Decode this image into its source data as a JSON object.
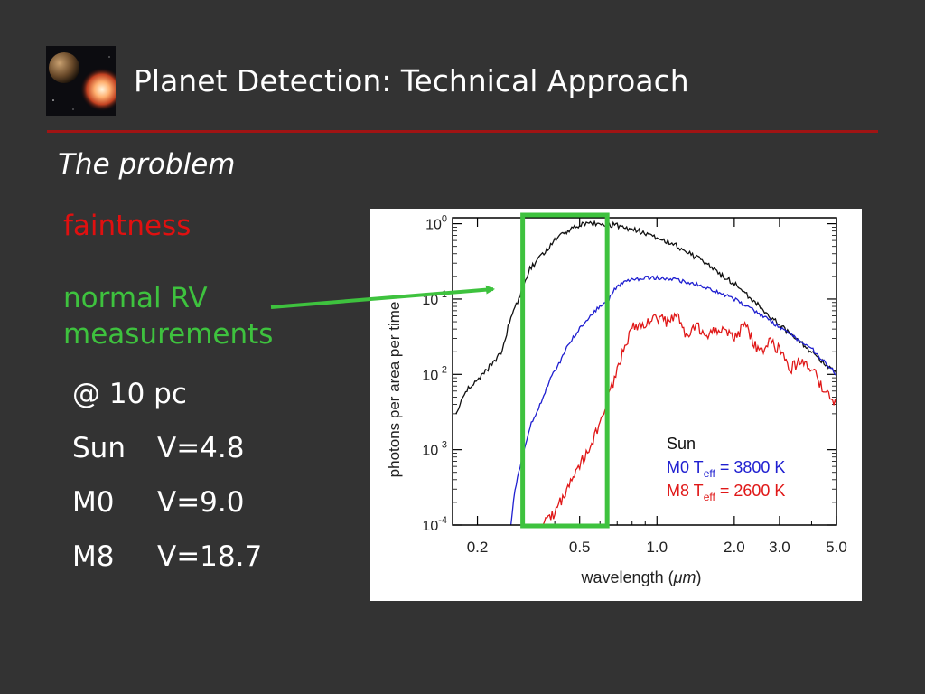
{
  "slide": {
    "title": "Planet Detection: Technical Approach",
    "subtitle": "The problem",
    "faintness": "faintness",
    "rv_line1": "normal RV",
    "rv_line2": "measurements",
    "distance": "@ 10 pc",
    "stars": [
      {
        "name": "Sun",
        "vmag": "V=4.8"
      },
      {
        "name": "M0",
        "vmag": "V=9.0"
      },
      {
        "name": "M8",
        "vmag": "V=18.7"
      }
    ],
    "colors": {
      "rule": "#a01414",
      "faintness": "#e01010",
      "rv": "#3ec23e",
      "highlight": "#3ec23e"
    }
  },
  "chart_data": {
    "type": "line",
    "xlabel_prefix": "wavelength (",
    "xlabel_unit": "μm",
    "xlabel_suffix": ")",
    "ylabel": "photons per area per time",
    "x_scale": "log",
    "y_scale": "log",
    "xlim": [
      0.16,
      5.0
    ],
    "ylim": [
      0.0001,
      1.2
    ],
    "x_ticks": [
      {
        "value": 0.2,
        "label": "0.2"
      },
      {
        "value": 0.5,
        "label": "0.5"
      },
      {
        "value": 1.0,
        "label": "1.0"
      },
      {
        "value": 2.0,
        "label": "2.0"
      },
      {
        "value": 3.0,
        "label": "3.0"
      },
      {
        "value": 5.0,
        "label": "5.0"
      }
    ],
    "y_ticks": [
      {
        "value": 1,
        "base": "10",
        "exp": "0"
      },
      {
        "value": 0.1,
        "base": "10",
        "exp": "-1"
      },
      {
        "value": 0.01,
        "base": "10",
        "exp": "-2"
      },
      {
        "value": 0.001,
        "base": "10",
        "exp": "-3"
      },
      {
        "value": 0.0001,
        "base": "10",
        "exp": "-4"
      }
    ],
    "legend": {
      "placement": "bottom-right",
      "entries": [
        {
          "name": "Sun",
          "color": "#111111"
        },
        {
          "name_prefix": "M0  T",
          "sub": "eff",
          "name_suffix": " = 3800 K",
          "color": "#1f1fd0"
        },
        {
          "name_prefix": "M8  T",
          "sub": "eff",
          "name_suffix": " = 2600 K",
          "color": "#e01818"
        }
      ]
    },
    "series": [
      {
        "name": "Sun",
        "color": "#111111",
        "x": [
          0.165,
          0.18,
          0.2,
          0.22,
          0.25,
          0.27,
          0.29,
          0.3,
          0.32,
          0.35,
          0.4,
          0.45,
          0.5,
          0.55,
          0.6,
          0.7,
          0.8,
          1.0,
          1.2,
          1.5,
          2.0,
          2.5,
          3.0,
          4.0,
          5.0
        ],
        "y": [
          0.003,
          0.006,
          0.008,
          0.012,
          0.02,
          0.06,
          0.1,
          0.15,
          0.25,
          0.35,
          0.6,
          0.8,
          0.95,
          1.0,
          1.0,
          0.95,
          0.85,
          0.65,
          0.5,
          0.32,
          0.16,
          0.08,
          0.045,
          0.02,
          0.01
        ]
      },
      {
        "name": "M0 Teff = 3800 K",
        "color": "#1f1fd0",
        "x": [
          0.27,
          0.28,
          0.3,
          0.32,
          0.35,
          0.38,
          0.42,
          0.45,
          0.5,
          0.55,
          0.6,
          0.65,
          0.7,
          0.8,
          0.9,
          1.0,
          1.2,
          1.5,
          2.0,
          2.5,
          3.0,
          4.0,
          5.0
        ],
        "y": [
          0.0001,
          0.0003,
          0.0008,
          0.002,
          0.004,
          0.008,
          0.015,
          0.025,
          0.04,
          0.06,
          0.08,
          0.1,
          0.15,
          0.18,
          0.19,
          0.19,
          0.18,
          0.15,
          0.1,
          0.065,
          0.042,
          0.022,
          0.01
        ]
      },
      {
        "name": "M8 Teff = 2600 K",
        "color": "#e01818",
        "x": [
          0.36,
          0.4,
          0.45,
          0.5,
          0.55,
          0.6,
          0.65,
          0.7,
          0.75,
          0.8,
          0.9,
          1.0,
          1.1,
          1.2,
          1.3,
          1.4,
          1.6,
          1.8,
          2.0,
          2.2,
          2.5,
          2.8,
          3.0,
          3.3,
          3.6,
          4.0,
          4.5,
          5.0
        ],
        "y": [
          0.0001,
          0.00015,
          0.0003,
          0.0006,
          0.0012,
          0.002,
          0.005,
          0.012,
          0.025,
          0.04,
          0.05,
          0.055,
          0.05,
          0.06,
          0.03,
          0.045,
          0.035,
          0.04,
          0.03,
          0.045,
          0.02,
          0.028,
          0.02,
          0.012,
          0.015,
          0.012,
          0.006,
          0.004
        ]
      }
    ],
    "highlight_box": {
      "x_range": [
        0.3,
        0.64
      ],
      "color": "#3ec23e"
    }
  }
}
